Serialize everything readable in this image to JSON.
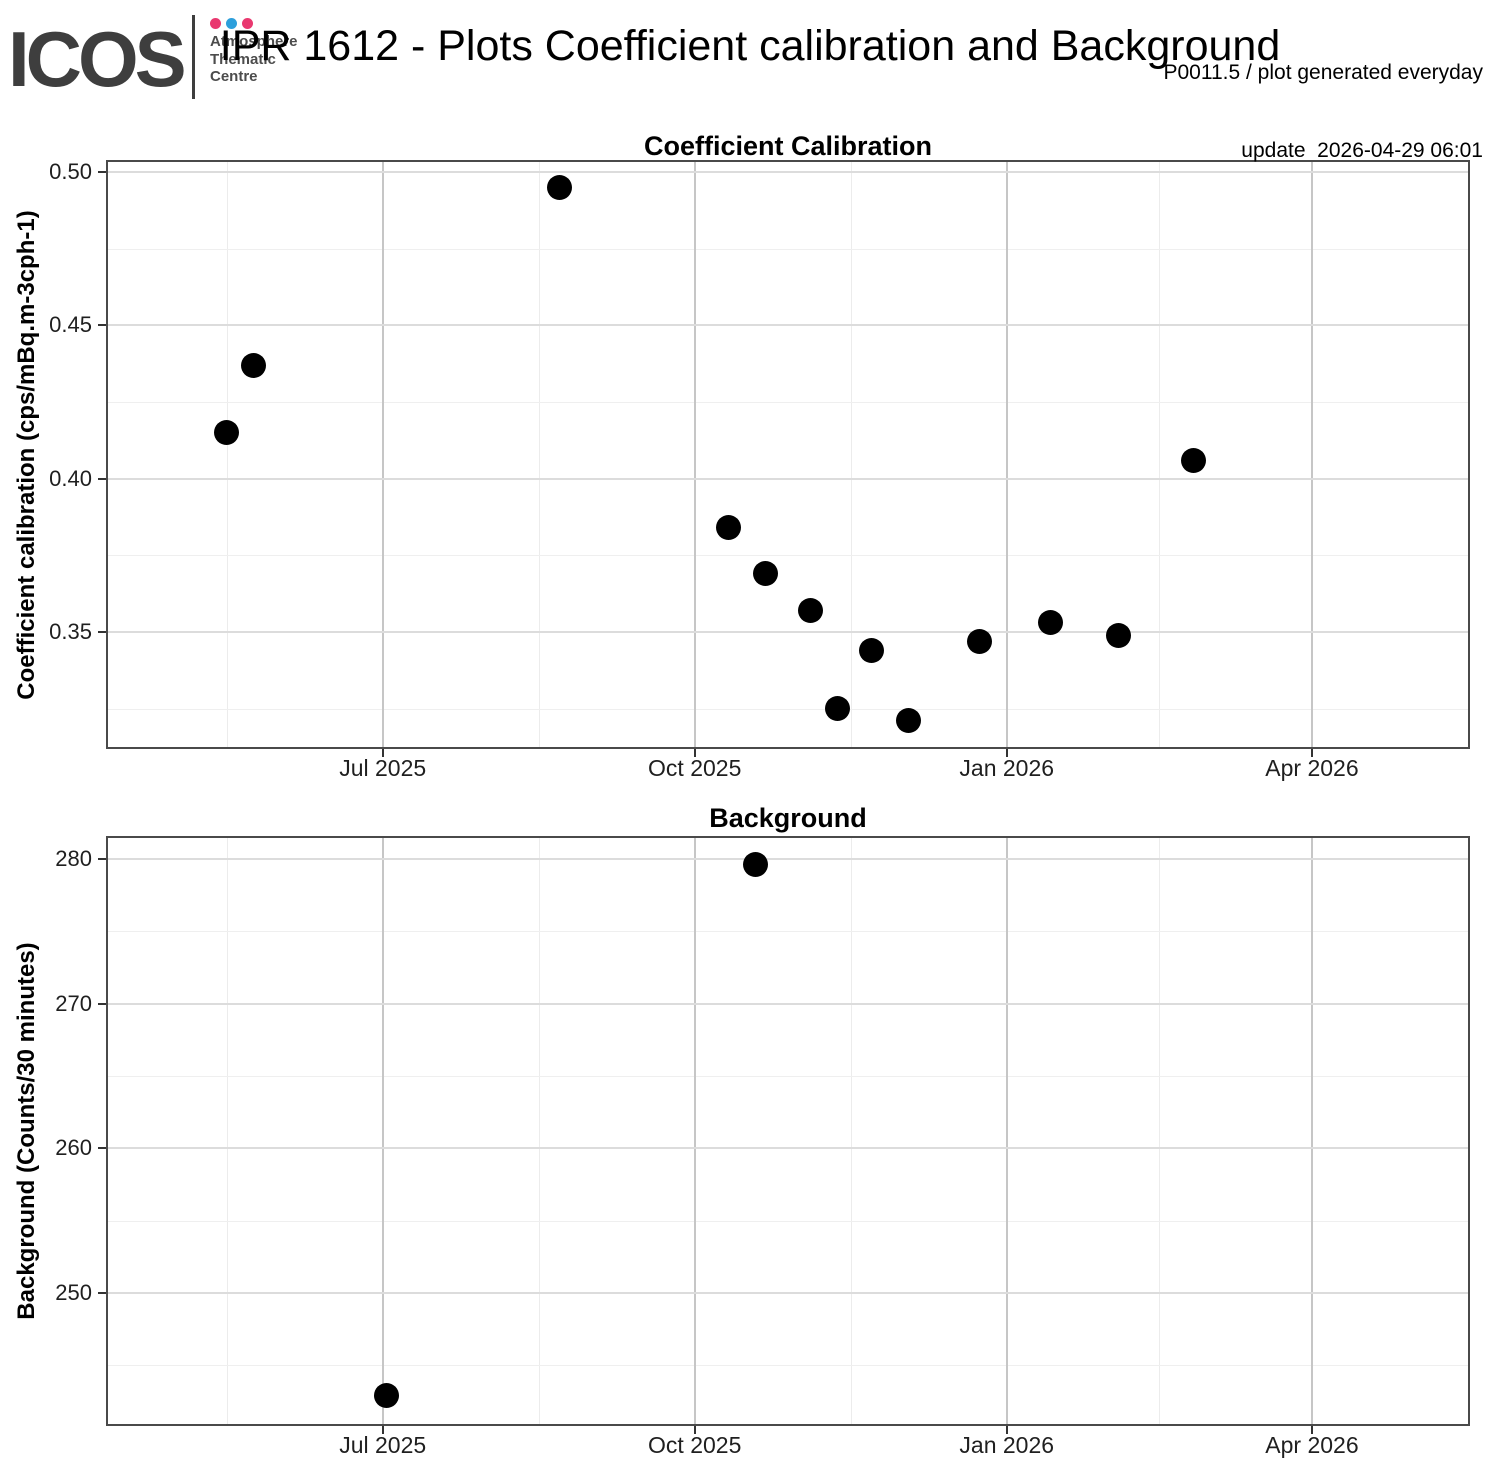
{
  "header": {
    "logo_text": "ICOS",
    "logo_subtitle": [
      "Atmosphere",
      "Thematic",
      "Centre"
    ],
    "logo_dot_colors": [
      "#e9386f",
      "#2d9fdb",
      "#e9386f"
    ],
    "page_title": "IPR 1612 - Plots Coefficient calibration and Background",
    "info_line1": "P0011.5 / plot generated everyday",
    "info_line2": "update  2026-04-29 06:01"
  },
  "style": {
    "logo_color": "#3e3e3e",
    "point_color": "#000000",
    "panel_border": "#4a4a4a",
    "tick_color": "#333333"
  },
  "chart_data": [
    {
      "type": "scatter",
      "title": "Coefficient Calibration",
      "xlabel": "",
      "ylabel": "Coefficient calibration (cps/mBq.m-3cph-1)",
      "x_range": [
        "2025-04-11",
        "2026-05-17"
      ],
      "ylim": [
        0.3125,
        0.5032
      ],
      "grid": true,
      "legend": "none",
      "x_major_ticks": [
        {
          "date": "2025-07-01",
          "label": "Jul 2025"
        },
        {
          "date": "2025-10-01",
          "label": "Oct 2025"
        },
        {
          "date": "2026-01-01",
          "label": "Jan 2026"
        },
        {
          "date": "2026-04-01",
          "label": "Apr 2026"
        }
      ],
      "x_minor_ticks": [
        "2025-05-16",
        "2025-08-16",
        "2025-11-16",
        "2026-02-15"
      ],
      "y_major_ticks": [
        {
          "value": 0.5,
          "label": "0.50"
        },
        {
          "value": 0.45,
          "label": "0.45"
        },
        {
          "value": 0.4,
          "label": "0.40"
        },
        {
          "value": 0.35,
          "label": "0.35"
        }
      ],
      "y_minor_ticks": [
        0.475,
        0.425,
        0.375,
        0.325
      ],
      "points": [
        {
          "date": "2025-05-16",
          "value": 0.415
        },
        {
          "date": "2025-05-24",
          "value": 0.437
        },
        {
          "date": "2025-08-22",
          "value": 0.495
        },
        {
          "date": "2025-10-11",
          "value": 0.384
        },
        {
          "date": "2025-10-22",
          "value": 0.369
        },
        {
          "date": "2025-11-04",
          "value": 0.357
        },
        {
          "date": "2025-11-12",
          "value": 0.325
        },
        {
          "date": "2025-11-22",
          "value": 0.344
        },
        {
          "date": "2025-12-03",
          "value": 0.321
        },
        {
          "date": "2025-12-24",
          "value": 0.347
        },
        {
          "date": "2026-01-14",
          "value": 0.353
        },
        {
          "date": "2026-02-03",
          "value": 0.349
        },
        {
          "date": "2026-02-25",
          "value": 0.406
        }
      ]
    },
    {
      "type": "scatter",
      "title": "Background",
      "xlabel": "",
      "ylabel": "Background (Counts/30 minutes)",
      "x_range": [
        "2025-04-11",
        "2026-05-17"
      ],
      "ylim": [
        240.95,
        281.44
      ],
      "grid": true,
      "legend": "none",
      "x_major_ticks": [
        {
          "date": "2025-07-01",
          "label": "Jul 2025"
        },
        {
          "date": "2025-10-01",
          "label": "Oct 2025"
        },
        {
          "date": "2026-01-01",
          "label": "Jan 2026"
        },
        {
          "date": "2026-04-01",
          "label": "Apr 2026"
        }
      ],
      "x_minor_ticks": [
        "2025-05-16",
        "2025-08-16",
        "2025-11-16",
        "2026-02-15"
      ],
      "y_major_ticks": [
        {
          "value": 280,
          "label": "280"
        },
        {
          "value": 270,
          "label": "270"
        },
        {
          "value": 260,
          "label": "260"
        },
        {
          "value": 250,
          "label": "250"
        }
      ],
      "y_minor_ticks": [
        275,
        265,
        255,
        245
      ],
      "points": [
        {
          "date": "2025-07-02",
          "value": 242.9
        },
        {
          "date": "2025-10-19",
          "value": 279.6
        }
      ]
    }
  ]
}
